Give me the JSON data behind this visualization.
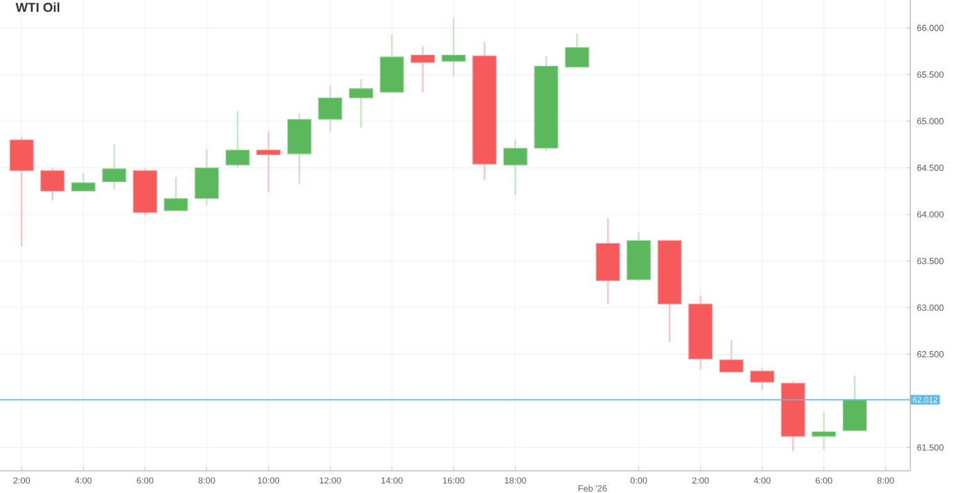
{
  "chart_data": {
    "type": "candlestick",
    "title": "WTI Oil",
    "categories": [
      "2:00",
      null,
      "4:00",
      null,
      "6:00",
      null,
      "8:00",
      null,
      "10:00",
      null,
      "12:00",
      null,
      "14:00",
      null,
      "16:00",
      null,
      "18:00",
      null,
      null,
      null,
      "0:00",
      null,
      "2:00",
      null,
      "4:00",
      null,
      "6:00",
      null,
      "8:00"
    ],
    "ohlc": [
      [
        64.8,
        64.83,
        63.66,
        64.47
      ],
      [
        64.47,
        64.5,
        64.15,
        64.25
      ],
      [
        64.25,
        64.44,
        64.25,
        64.34
      ],
      [
        64.35,
        64.75,
        64.27,
        64.49
      ],
      [
        64.47,
        64.49,
        63.99,
        64.02
      ],
      [
        64.04,
        64.4,
        64.04,
        64.17
      ],
      [
        64.17,
        64.7,
        64.1,
        64.5
      ],
      [
        64.53,
        65.11,
        64.5,
        64.69
      ],
      [
        64.69,
        64.89,
        64.24,
        64.64
      ],
      [
        64.65,
        65.08,
        64.33,
        65.02
      ],
      [
        65.02,
        65.38,
        64.89,
        65.25
      ],
      [
        65.25,
        65.45,
        64.93,
        65.35
      ],
      [
        65.31,
        65.93,
        65.31,
        65.69
      ],
      [
        65.71,
        65.8,
        65.31,
        65.63
      ],
      [
        65.64,
        66.11,
        65.48,
        65.71
      ],
      [
        65.7,
        65.85,
        64.37,
        64.54
      ],
      [
        64.53,
        64.8,
        64.21,
        64.71
      ],
      [
        64.71,
        65.7,
        64.68,
        65.59
      ],
      [
        65.58,
        65.94,
        65.58,
        65.79
      ],
      [
        63.69,
        63.96,
        63.04,
        63.29
      ],
      [
        63.3,
        63.81,
        63.28,
        63.72
      ],
      [
        63.72,
        63.73,
        62.63,
        63.04
      ],
      [
        63.04,
        63.13,
        62.34,
        62.45
      ],
      [
        62.44,
        62.65,
        62.31,
        62.31
      ],
      [
        62.32,
        62.35,
        62.12,
        62.2
      ],
      [
        62.19,
        62.21,
        61.46,
        61.62
      ],
      [
        61.62,
        61.88,
        61.48,
        61.67
      ],
      [
        61.68,
        62.27,
        61.68,
        62.01
      ],
      null
    ],
    "colors": [
      "#f75a5a",
      "#f75a5a",
      "#5cb85c",
      "#5cb85c",
      "#f75a5a",
      "#5cb85c",
      "#5cb85c",
      "#5cb85c",
      "#f75a5a",
      "#5cb85c",
      "#5cb85c",
      "#5cb85c",
      "#5cb85c",
      "#f75a5a",
      "#5cb85c",
      "#f75a5a",
      "#5cb85c",
      "#5cb85c",
      "#5cb85c",
      "#f75a5a",
      "#5cb85c",
      "#f75a5a",
      "#f75a5a",
      "#f75a5a",
      "#f75a5a",
      "#f75a5a",
      "#5cb85c",
      "#5cb85c",
      null
    ],
    "ylim": [
      61.25,
      66.3
    ],
    "yticks": [
      {
        "value": 61.5,
        "label": "61.500"
      },
      {
        "value": 62.5,
        "label": "62.500"
      },
      {
        "value": 63,
        "label": "63.000"
      },
      {
        "value": 63.5,
        "label": "63.500"
      },
      {
        "value": 64,
        "label": "64.000"
      },
      {
        "value": 64.5,
        "label": "64.500"
      },
      {
        "value": 65,
        "label": "65.000"
      },
      {
        "value": 65.5,
        "label": "65.500"
      },
      {
        "value": 66,
        "label": "66.000"
      }
    ],
    "ref_lines": [
      {
        "axis": "y",
        "value": 62.012,
        "label": "62.012",
        "color": "#5bb8f0"
      }
    ],
    "annotations": [
      "Feb '26"
    ],
    "grid": true
  }
}
